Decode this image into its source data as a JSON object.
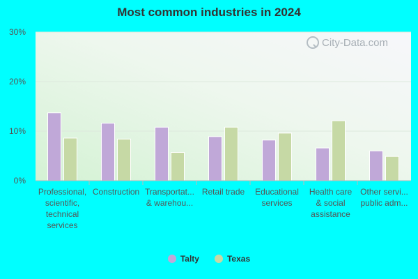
{
  "chart_data": {
    "type": "bar",
    "title": "Most common industries in 2024",
    "categories": [
      [
        "Professional,",
        "scientific,",
        "technical",
        "services"
      ],
      [
        "Construction"
      ],
      [
        "Transportat...",
        "& warehou..."
      ],
      [
        "Retail trade"
      ],
      [
        "Educational",
        "services"
      ],
      [
        "Health care",
        "& social",
        "assistance"
      ],
      [
        "Other servi...",
        "public adm..."
      ]
    ],
    "series": [
      {
        "name": "Talty",
        "color": "#c0a8d8",
        "values": [
          13.7,
          11.6,
          10.8,
          8.9,
          8.2,
          6.6,
          6.0
        ]
      },
      {
        "name": "Texas",
        "color": "#c6d9a5",
        "values": [
          8.6,
          8.4,
          5.7,
          10.8,
          9.6,
          12.1,
          4.9
        ]
      }
    ],
    "ylim": [
      0,
      30
    ],
    "yticks": [
      "0%",
      "10%",
      "20%",
      "30%"
    ],
    "ytick_values": [
      0,
      10,
      20,
      30
    ],
    "grid": true,
    "legend_position": "bottom"
  },
  "watermark": "City-Data.com"
}
